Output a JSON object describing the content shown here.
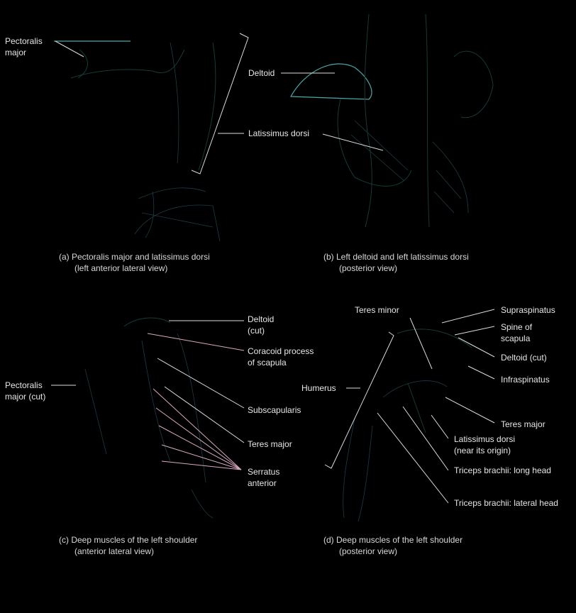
{
  "panels": {
    "a": {
      "caption_line1": "(a) Pectoralis major and latissimus dorsi",
      "caption_line2": "(left anterior lateral view)",
      "labels": {
        "pectoralis_major_1": "Pectoralis",
        "pectoralis_major_2": "major"
      }
    },
    "b": {
      "caption_line1": "(b) Left deltoid and left latissimus dorsi",
      "caption_line2": "(posterior view)",
      "labels": {
        "deltoid": "Deltoid",
        "latissimus_dorsi": "Latissimus dorsi"
      }
    },
    "c": {
      "caption_line1": "(c) Deep muscles of the left shoulder",
      "caption_line2": "(anterior lateral view)",
      "labels": {
        "deltoid_cut_1": "Deltoid",
        "deltoid_cut_2": "(cut)",
        "coracoid_1": "Coracoid process",
        "coracoid_2": "of scapula",
        "pectoralis_cut_1": "Pectoralis",
        "pectoralis_cut_2": "major (cut)",
        "subscapularis": "Subscapularis",
        "teres_major": "Teres major",
        "serratus_1": "Serratus",
        "serratus_2": "anterior"
      }
    },
    "d": {
      "caption_line1": "(d) Deep muscles of the left shoulder",
      "caption_line2": "(posterior view)",
      "labels": {
        "teres_minor": "Teres minor",
        "supraspinatus": "Supraspinatus",
        "spine_1": "Spine of",
        "spine_2": "scapula",
        "deltoid_cut": "Deltoid (cut)",
        "infraspinatus": "Infraspinatus",
        "humerus": "Humerus",
        "teres_major": "Teres major",
        "latissimus_1": "Latissimus dorsi",
        "latissimus_2": "(near its origin)",
        "triceps_long": "Triceps brachii: long head",
        "triceps_lateral": "Triceps brachii: lateral head"
      }
    }
  }
}
